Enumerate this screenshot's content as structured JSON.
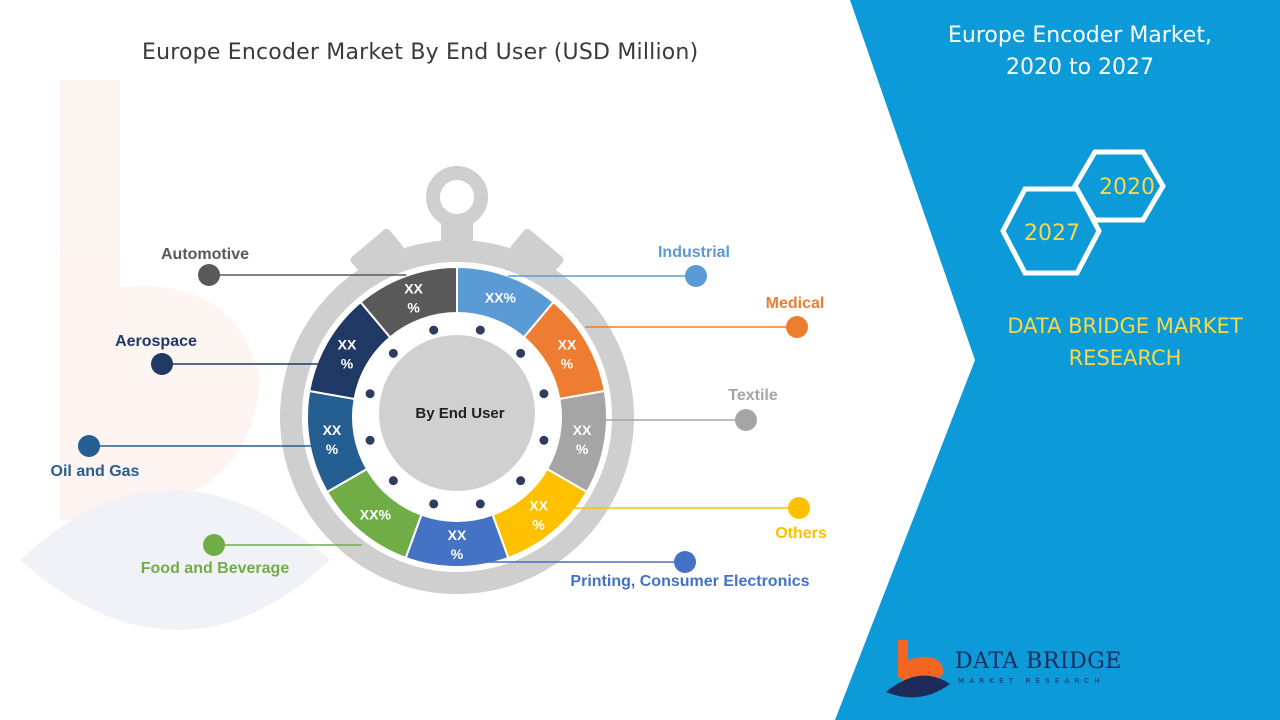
{
  "header": {
    "title": "Europe Encoder Market By End User (USD Million)"
  },
  "side_panel": {
    "title_line1": "Europe Encoder Market,",
    "title_line2": "2020 to 2027",
    "year_a": "2020",
    "year_b": "2027",
    "brand_line1": "DATA BRIDGE MARKET",
    "brand_line2": "RESEARCH",
    "color": "#0c9ad9",
    "accent": "#f5d949"
  },
  "logo": {
    "name": "DATA BRIDGE",
    "tagline": "MARKET RESEARCH"
  },
  "chart_data": {
    "type": "pie",
    "center_label": "By End User",
    "categories": [
      "Industrial",
      "Medical",
      "Textile",
      "Others",
      "Printing, Consumer Electronics",
      "Food and Beverage",
      "Oil and Gas",
      "Aerospace",
      "Automotive"
    ],
    "slice_labels": [
      "XX%",
      "XX\n%",
      "XX\n%",
      "XX\n%",
      "XX\n%",
      "XX%",
      "XX\n%",
      "XX\n%",
      "XX\n%"
    ],
    "colors": [
      "#5b9bd5",
      "#ed7d31",
      "#a5a5a5",
      "#ffc000",
      "#4472c4",
      "#70ad47",
      "#255e91",
      "#203864",
      "#595959"
    ],
    "values": [
      1,
      1,
      1,
      1,
      1,
      1,
      1,
      1,
      1
    ],
    "legend": "callouts"
  }
}
